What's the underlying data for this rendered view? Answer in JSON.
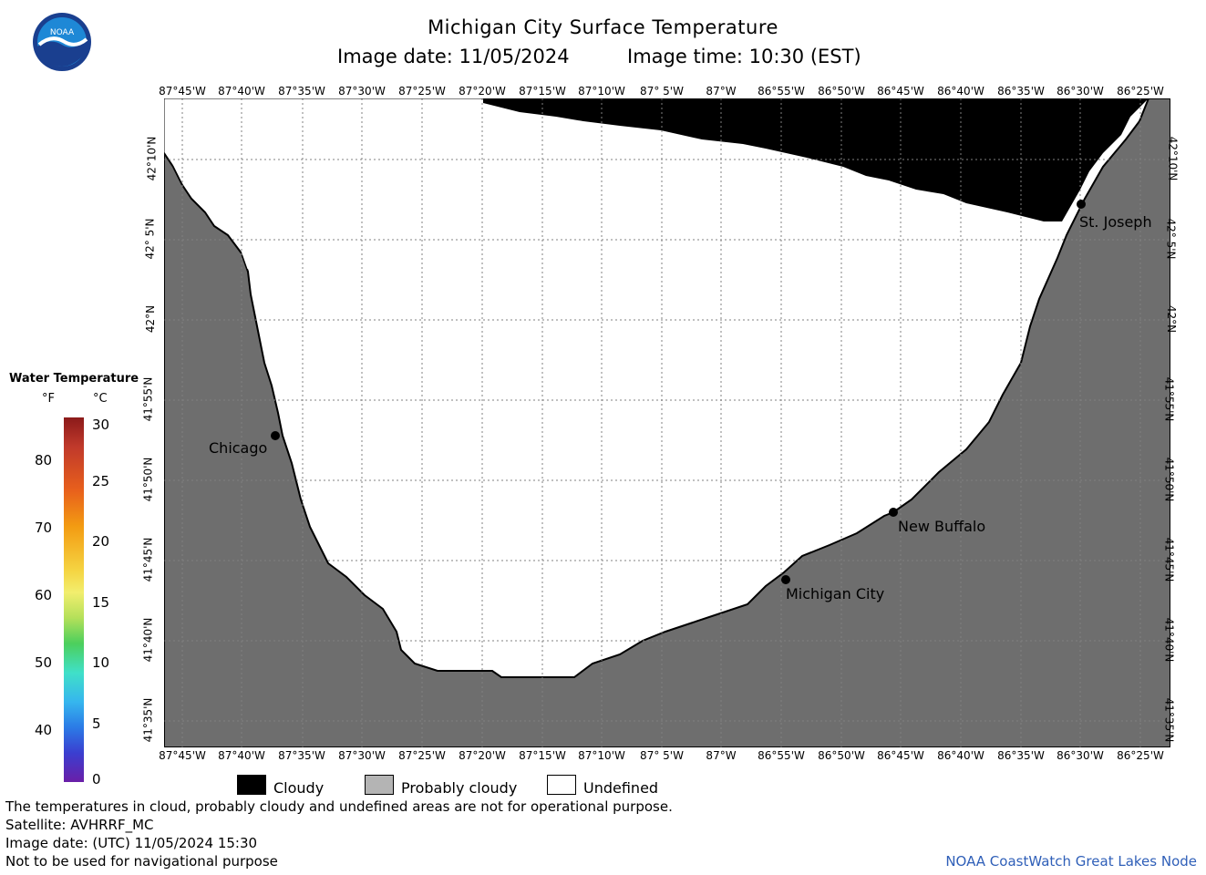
{
  "header": {
    "title": "Michigan City Surface Temperature",
    "date_label": "Image date: 11/05/2024",
    "time_label": "Image time: 10:30 (EST)"
  },
  "logo": {
    "text": "NOAA",
    "colors": {
      "outer": "#1a3f8f",
      "inner": "#1e88d6",
      "wave": "#ffffff"
    }
  },
  "map": {
    "longitude_labels": [
      "87°45'W",
      "87°40'W",
      "87°35'W",
      "87°30'W",
      "87°25'W",
      "87°20'W",
      "87°15'W",
      "87°10'W",
      "87° 5'W",
      "87°W",
      "86°55'W",
      "86°50'W",
      "86°45'W",
      "86°40'W",
      "86°35'W",
      "86°30'W",
      "86°25'W"
    ],
    "latitude_labels": [
      "42°10'N",
      "42° 5'N",
      "42°N",
      "41°55'N",
      "41°50'N",
      "41°45'N",
      "41°40'N",
      "41°35'N"
    ],
    "cities": [
      {
        "name": "Chicago"
      },
      {
        "name": "Michigan City"
      },
      {
        "name": "New Buffalo"
      },
      {
        "name": "St. Joseph"
      }
    ],
    "colors": {
      "land": "#6e6e6e",
      "cloud": "#000000",
      "undefined": "#ffffff",
      "grid": "#808080"
    }
  },
  "legend": {
    "title": "Water Temperature",
    "unit_f": "°F",
    "unit_c": "°C",
    "f_ticks": [
      "80",
      "70",
      "60",
      "50",
      "40"
    ],
    "c_ticks": [
      "30",
      "25",
      "20",
      "15",
      "10",
      "5",
      "0"
    ]
  },
  "key": [
    {
      "label": "Cloudy",
      "color": "#000000"
    },
    {
      "label": "Probably cloudy",
      "color": "#b4b4b4"
    },
    {
      "label": "Undefined",
      "color": "#ffffff"
    }
  ],
  "notes": {
    "line1": "The temperatures in cloud, probably cloudy and undefined areas are not for operational purpose.",
    "line2": "Satellite: AVHRRF_MC",
    "line3": "Image date: (UTC) 11/05/2024  15:30",
    "line4": "Not to be used for navigational purpose",
    "credit": "NOAA CoastWatch Great Lakes Node"
  }
}
